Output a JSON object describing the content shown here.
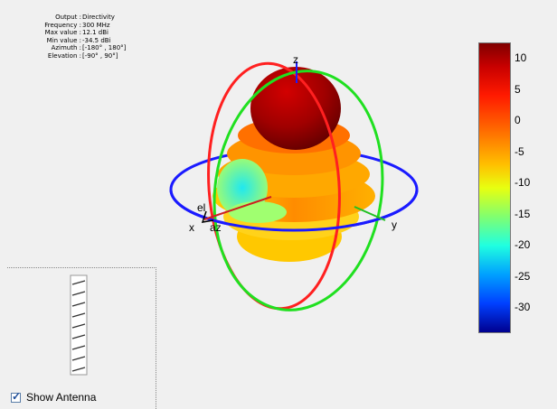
{
  "info": {
    "rows": [
      {
        "key": "Output :",
        "value": "Directivity"
      },
      {
        "key": "Frequency :",
        "value": "300 MHz"
      },
      {
        "key": "Max value :",
        "value": "12.1 dBi"
      },
      {
        "key": "Min value :",
        "value": "-34.5 dBi"
      },
      {
        "key": "Azimuth :",
        "value": "[-180° , 180°]"
      },
      {
        "key": "Elevation :",
        "value": "[-90° , 90°]"
      }
    ]
  },
  "axes": {
    "x": "x",
    "y": "y",
    "z": "z",
    "el": "el",
    "az": "az"
  },
  "colorbar": {
    "ticks": [
      "10",
      "5",
      "0",
      "-5",
      "-10",
      "-15",
      "-20",
      "-25",
      "-30"
    ]
  },
  "antenna_panel": {
    "show_antenna_label": "Show Antenna",
    "show_antenna_checked": true
  },
  "colors": {
    "azimuth_ring": "#1a1aff",
    "elevation_ring_red": "#ff2020",
    "elevation_ring_green": "#20e020"
  }
}
